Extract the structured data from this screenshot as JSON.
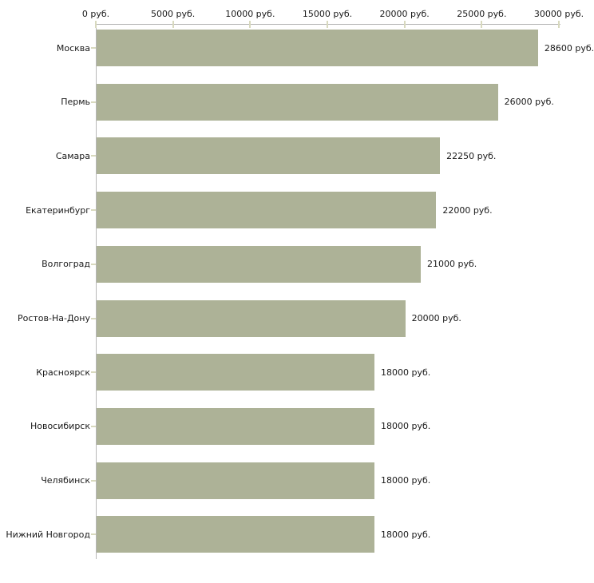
{
  "chart_data": {
    "type": "bar",
    "orientation": "horizontal",
    "title": "",
    "xlabel": "",
    "ylabel": "",
    "grid": false,
    "legend": null,
    "xlim": [
      0,
      30000
    ],
    "x_ticks": [
      {
        "value": 0,
        "label": "0 руб."
      },
      {
        "value": 5000,
        "label": "5000 руб."
      },
      {
        "value": 10000,
        "label": "10000 руб."
      },
      {
        "value": 15000,
        "label": "15000 руб."
      },
      {
        "value": 20000,
        "label": "20000 руб."
      },
      {
        "value": 25000,
        "label": "25000 руб."
      },
      {
        "value": 30000,
        "label": "30000 руб."
      }
    ],
    "categories": [
      "Москва",
      "Пермь",
      "Самара",
      "Екатеринбург",
      "Волгоград",
      "Ростов-На-Дону",
      "Красноярск",
      "Новосибирск",
      "Челябинск",
      "Нижний Новгород"
    ],
    "values": [
      28600,
      26000,
      22250,
      22000,
      21000,
      20000,
      18000,
      18000,
      18000,
      18000
    ],
    "value_labels": [
      "28600 руб.",
      "26000 руб.",
      "22250 руб.",
      "22000 руб.",
      "21000 руб.",
      "20000 руб.",
      "18000 руб.",
      "18000 руб.",
      "18000 руб.",
      "18000 руб."
    ],
    "colors": {
      "bar": "#adb297",
      "axis_line": "#b7b7b7",
      "tick": "#d8d9be",
      "text": "#1a1a1a",
      "background": "#ffffff"
    }
  }
}
